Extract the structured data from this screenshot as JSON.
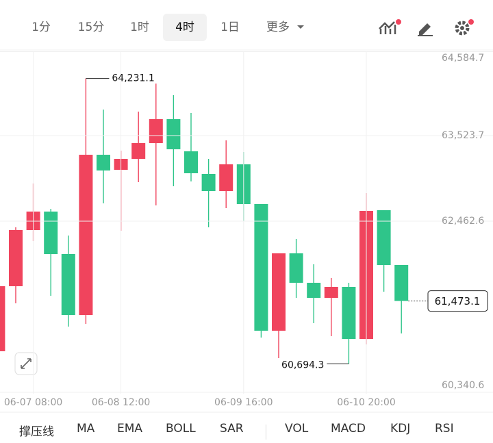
{
  "toolbar": {
    "tabs": [
      "1分",
      "15分",
      "1时",
      "4时",
      "1日",
      "更多"
    ]
  },
  "indicators": [
    "撑压线",
    "MA",
    "EMA",
    "BOLL",
    "SAR",
    "VOL",
    "MACD",
    "KDJ",
    "RSI"
  ],
  "chart_data": {
    "type": "candlestick",
    "up_color": "#f0445d",
    "down_color": "#2fc58a",
    "categories": [
      null,
      null,
      "06-07 08:00",
      null,
      null,
      null,
      null,
      "06-08 12:00",
      null,
      null,
      null,
      null,
      null,
      null,
      "06-09 16:00",
      null,
      null,
      null,
      null,
      null,
      null,
      "06-10 20:00",
      null,
      null
    ],
    "open": [
      60849.9,
      61656.2,
      62352.3,
      62581.4,
      62055.2,
      61299.7,
      63285.9,
      63099.2,
      63235.0,
      63430.2,
      63727.3,
      63328.4,
      63048.3,
      62836.1,
      63167.1,
      62674.8,
      61104.5,
      62063.7,
      61698.7,
      61511.9,
      61647.8,
      61002.7,
      62598.4,
      61919.4
    ],
    "high": [
      61656.2,
      62386.2,
      62929.4,
      62615.4,
      62284.4,
      64231.1,
      63846.1,
      63336.9,
      63820.7,
      64168.7,
      64024.4,
      63803.7,
      63235.0,
      63464.2,
      63319.9,
      62674.8,
      62063.7,
      62241.9,
      61927.9,
      61758.1,
      61698.7,
      62810.6,
      62598.4,
      61919.4
    ],
    "low": [
      60849.9,
      61444.0,
      62216.4,
      61537.4,
      61155.4,
      61189.4,
      62683.3,
      62343.8,
      62946.4,
      62657.8,
      62895.5,
      62954.9,
      62386.2,
      62623.9,
      62462.6,
      61019.6,
      60765.0,
      61511.9,
      61197.9,
      61036.6,
      60694.3,
      60934.8,
      61588.3,
      61070.6
    ],
    "close": [
      61656.2,
      62352.3,
      62581.4,
      62055.2,
      61299.7,
      63285.9,
      63090.7,
      63235.0,
      63430.2,
      63727.3,
      63353.8,
      63056.8,
      62836.1,
      63167.1,
      62674.8,
      61104.5,
      62063.7,
      61698.7,
      61511.9,
      61647.8,
      61002.7,
      62589.9,
      61919.4,
      61473.1
    ],
    "ylim": [
      60340.6,
      64584.7
    ],
    "yticks": [
      {
        "value": 60340.6,
        "label": "60,340.6"
      },
      {
        "value": 62462.6,
        "label": "62,462.6"
      },
      {
        "value": 63523.7,
        "label": "63,523.7"
      },
      {
        "value": 64584.7,
        "label": "64,584.7"
      }
    ],
    "grid": true,
    "high_marker": {
      "index": 5,
      "value": 64231.1,
      "label": "64,231.1"
    },
    "low_marker": {
      "index": 20,
      "value": 60694.3,
      "label": "60,694.3"
    },
    "last_price": {
      "value": 61473.1,
      "label": "61,473.1"
    }
  }
}
